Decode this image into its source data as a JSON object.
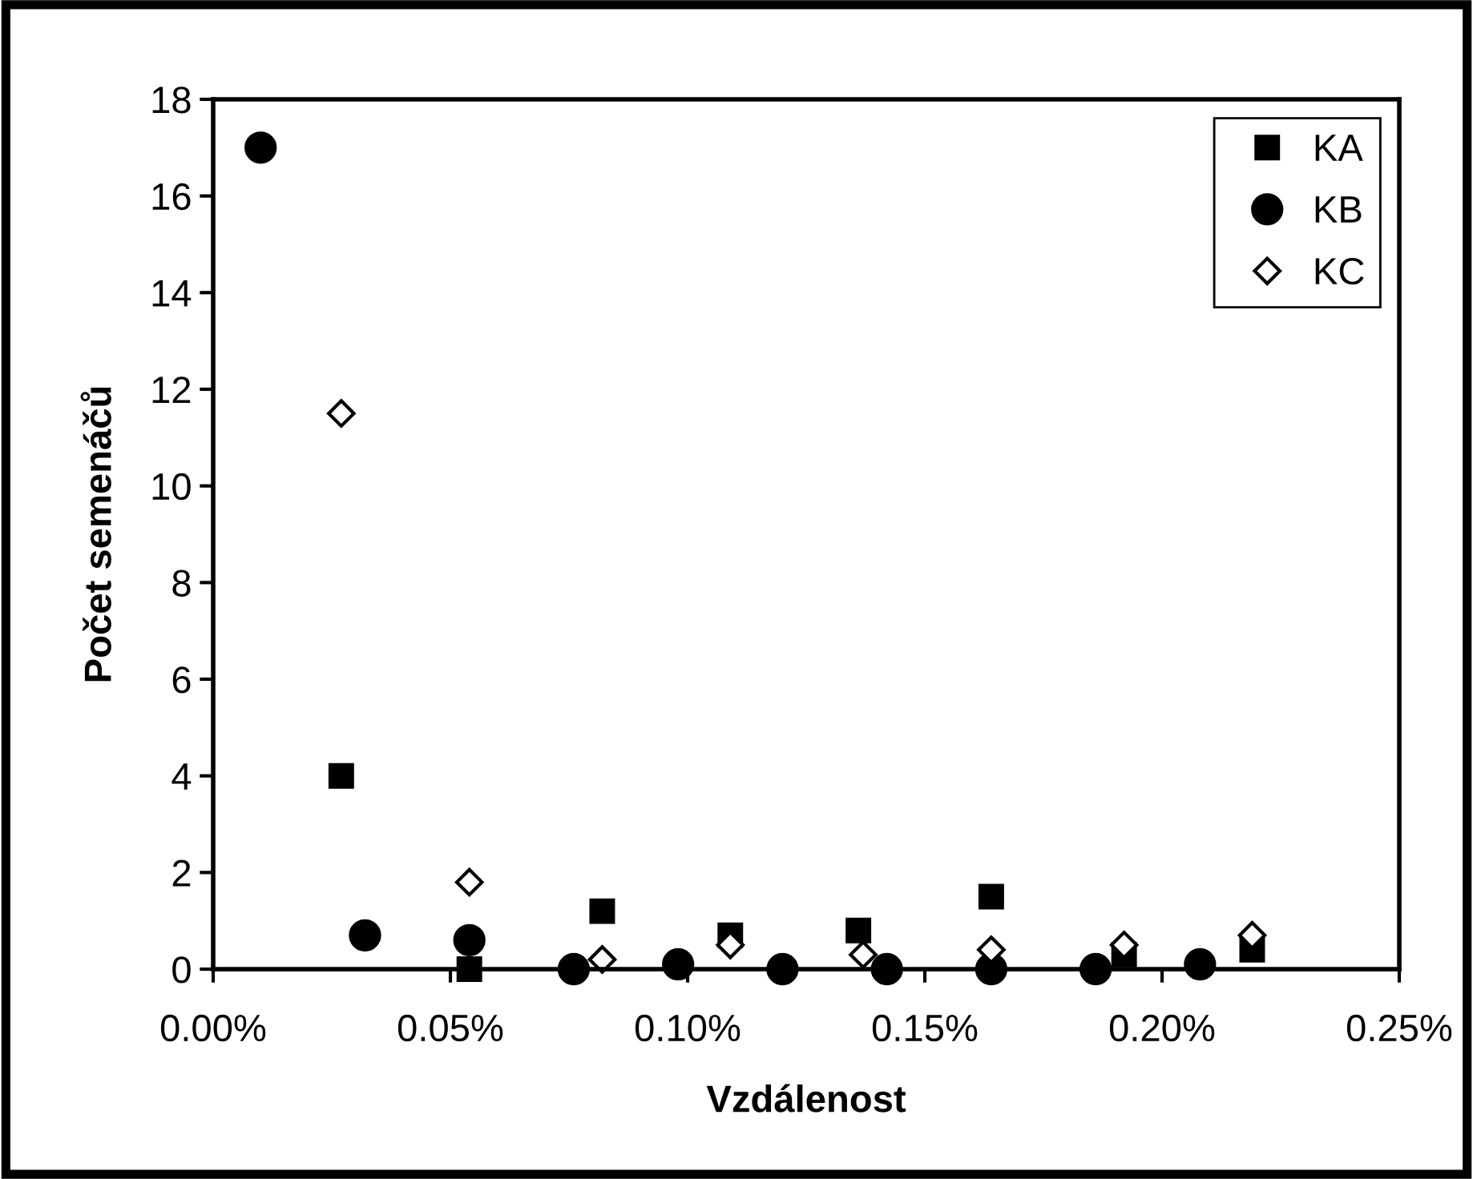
{
  "chart_data": {
    "type": "scatter",
    "xlabel": "Vzdálenost",
    "ylabel": "Počet semenáčů",
    "xlim": [
      0,
      0.25
    ],
    "ylim": [
      0,
      18
    ],
    "xticks": [
      {
        "value": 0,
        "label": "0.00%"
      },
      {
        "value": 0.05,
        "label": "0.05%"
      },
      {
        "value": 0.1,
        "label": "0.10%"
      },
      {
        "value": 0.15,
        "label": "0.15%"
      },
      {
        "value": 0.2,
        "label": "0.20%"
      },
      {
        "value": 0.25,
        "label": "0.25%"
      }
    ],
    "yticks": [
      0,
      2,
      4,
      6,
      8,
      10,
      12,
      14,
      16,
      18
    ],
    "grid": false,
    "legend": "top right",
    "series": [
      {
        "name": "KA",
        "color": "#000000",
        "marker": "square",
        "x": [
          0.027,
          0.054,
          0.082,
          0.109,
          0.136,
          0.164,
          0.192,
          0.219
        ],
        "values": [
          4.0,
          0.0,
          1.2,
          0.7,
          0.8,
          1.5,
          0.3,
          0.4
        ]
      },
      {
        "name": "KB",
        "color": "#000000",
        "marker": "circle",
        "x": [
          0.01,
          0.032,
          0.054,
          0.076,
          0.098,
          0.12,
          0.142,
          0.164,
          0.186,
          0.208
        ],
        "values": [
          17,
          0.7,
          0.6,
          0.0,
          0.1,
          0.0,
          0.0,
          0.0,
          0.0,
          0.1
        ]
      },
      {
        "name": "KC",
        "color": "#ffffff",
        "marker": "diamond",
        "x": [
          0.027,
          0.054,
          0.082,
          0.109,
          0.137,
          0.164,
          0.192,
          0.219
        ],
        "values": [
          11.5,
          1.8,
          0.2,
          0.5,
          0.3,
          0.4,
          0.5,
          0.7
        ]
      }
    ]
  }
}
